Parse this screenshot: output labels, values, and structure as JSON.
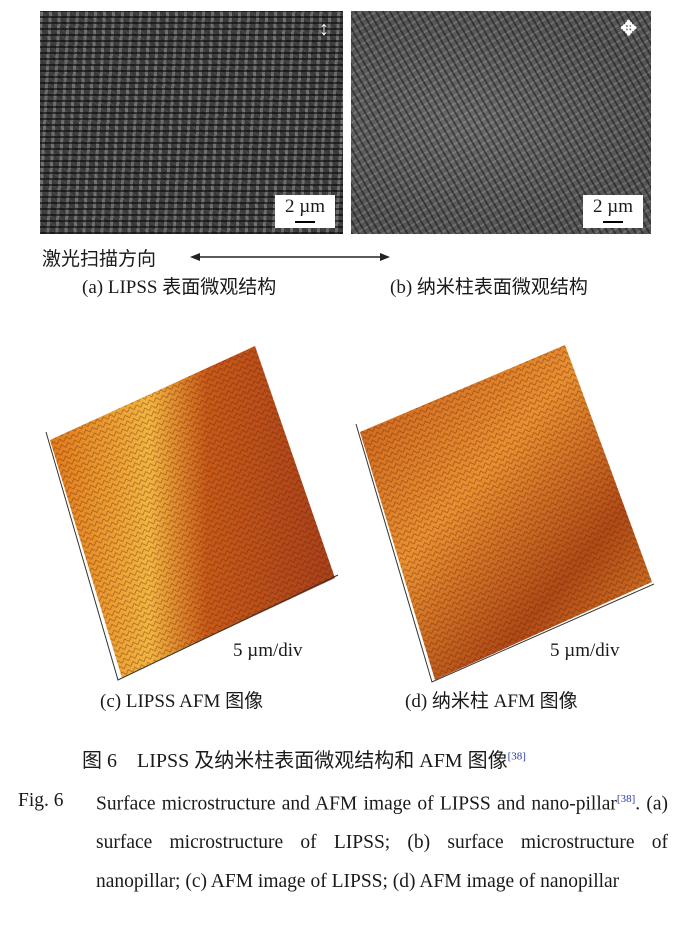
{
  "panel_a": {
    "scale_bar": "2 µm",
    "polarization_icon": "vertical-double-arrow-icon",
    "caption": "(a) LIPSS 表面微观结构"
  },
  "panel_b": {
    "scale_bar": "2 µm",
    "polarization_icon": "four-way-arrow-icon",
    "caption": "(b) 纳米柱表面微观结构"
  },
  "scan_direction_label": "激光扫描方向",
  "panel_c": {
    "scale_label": "5 µm/div",
    "caption": "(c) LIPSS AFM 图像"
  },
  "panel_d": {
    "scale_label": "5 µm/div",
    "caption": "(d) 纳米柱 AFM 图像"
  },
  "figure_caption_cn": {
    "text": "图 6　LIPSS 及纳米柱表面微观结构和 AFM 图像",
    "ref": "[38]"
  },
  "figure_caption_en": {
    "label": "Fig. 6",
    "text_before_ref": "Surface microstructure and AFM image of LIPSS and nano-pillar",
    "ref": "[38]",
    "text_after_ref": ". (a) surface microstructure of LIPSS; (b) surface microstructure of nanopillar; (c) AFM image of LIPSS; (d) AFM image of nanopillar"
  },
  "colors": {
    "afm_light": "#f0b030",
    "afm_mid": "#d9741a",
    "afm_dark": "#8c2e10",
    "sem_gray": "#4a4a4a"
  }
}
